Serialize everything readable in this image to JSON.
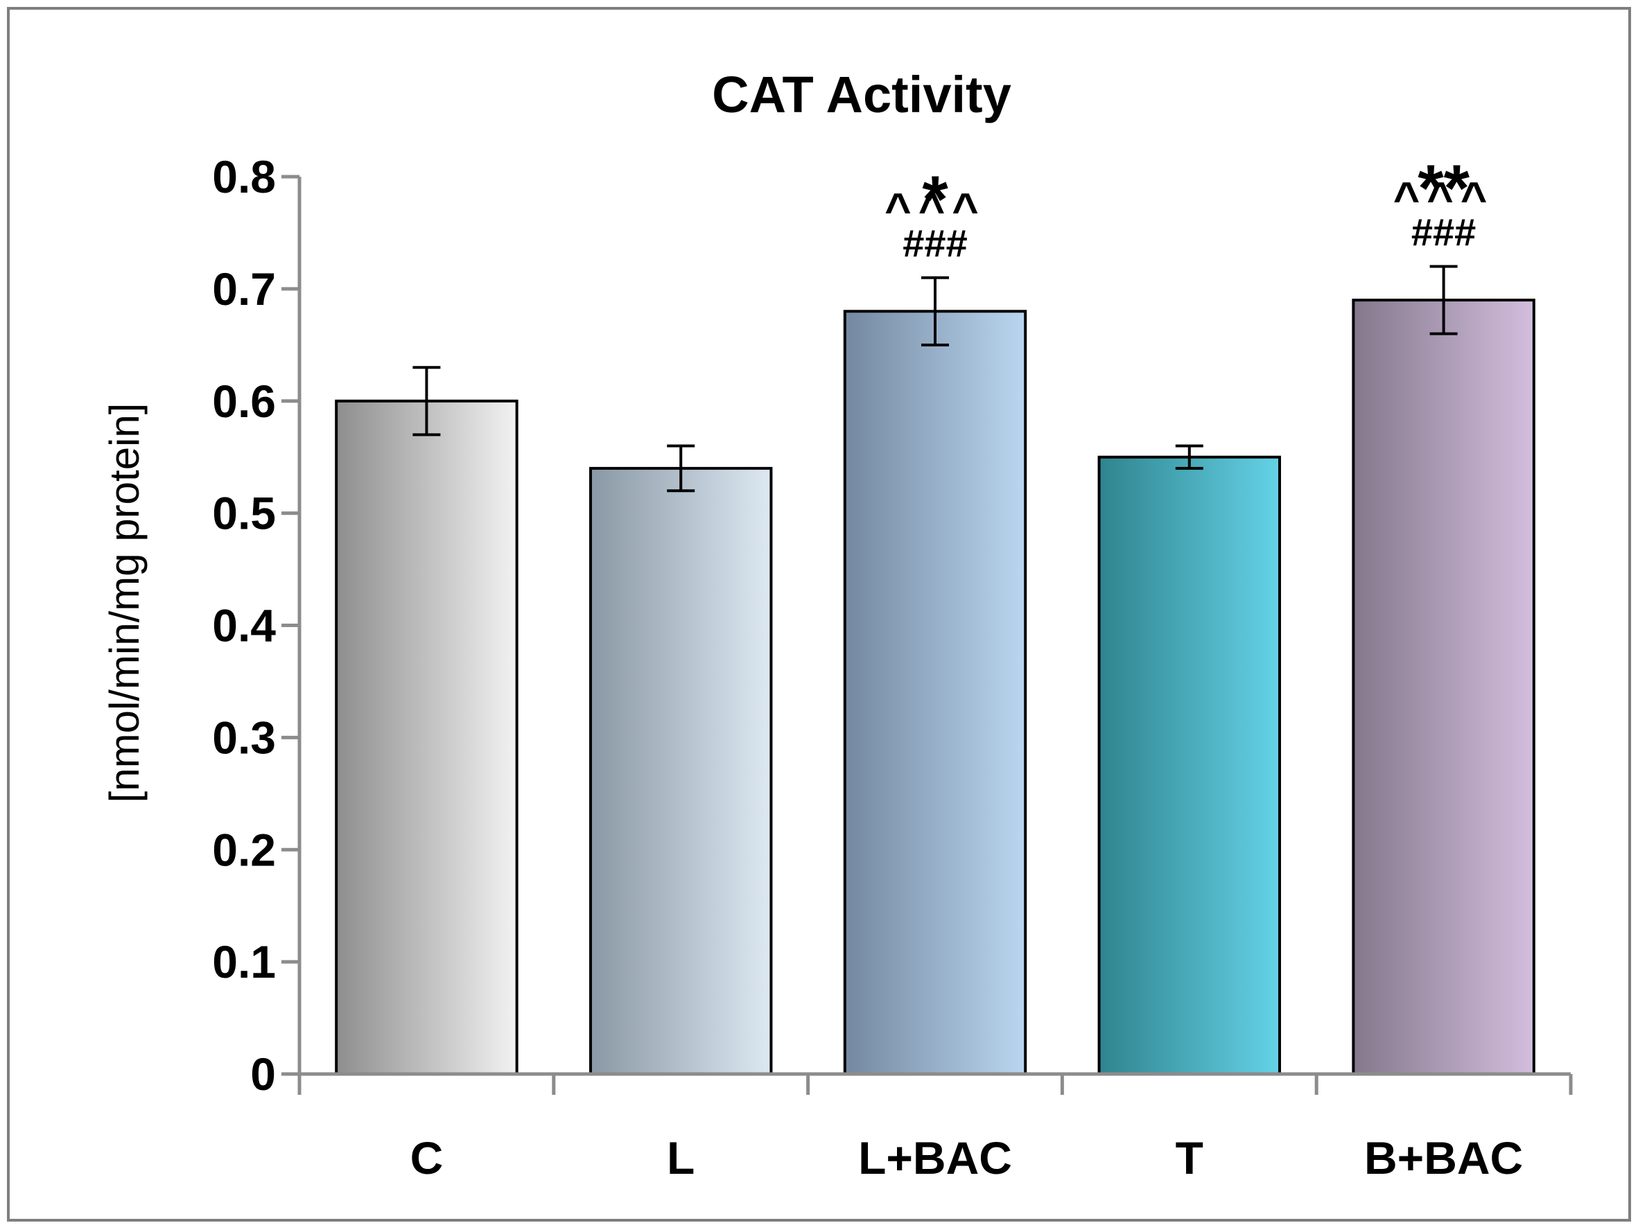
{
  "chart_data": {
    "type": "bar",
    "title": "CAT Activity",
    "xlabel": "",
    "ylabel": "[nmol/min/mg protein]",
    "ylim": [
      0,
      0.8
    ],
    "yticks": [
      0,
      0.1,
      0.2,
      0.3,
      0.4,
      0.5,
      0.6,
      0.7,
      0.8
    ],
    "ytick_labels": [
      "0",
      "0.1",
      "0.2",
      "0.3",
      "0.4",
      "0.5",
      "0.6",
      "0.7",
      "0.8"
    ],
    "grid": false,
    "legend": "none",
    "categories": [
      "C",
      "L",
      "L+BAC",
      "T",
      "B+BAC"
    ],
    "values": [
      0.6,
      0.54,
      0.68,
      0.55,
      0.69
    ],
    "errors": [
      0.03,
      0.02,
      0.03,
      0.01,
      0.03
    ],
    "colors": [
      {
        "dark": "#8e8e8e",
        "light": "#f2f2f2"
      },
      {
        "dark": "#8a98a5",
        "light": "#dde8f2"
      },
      {
        "dark": "#7488a0",
        "light": "#bad6f0"
      },
      {
        "dark": "#2f848e",
        "light": "#64d2e6"
      },
      {
        "dark": "#84788c",
        "light": "#d3bedd"
      }
    ],
    "annotations": [
      {
        "category": "L+BAC",
        "lines": [
          "*",
          "^^^",
          "###"
        ]
      },
      {
        "category": "B+BAC",
        "lines": [
          "**",
          "^^^",
          "###"
        ]
      }
    ]
  }
}
